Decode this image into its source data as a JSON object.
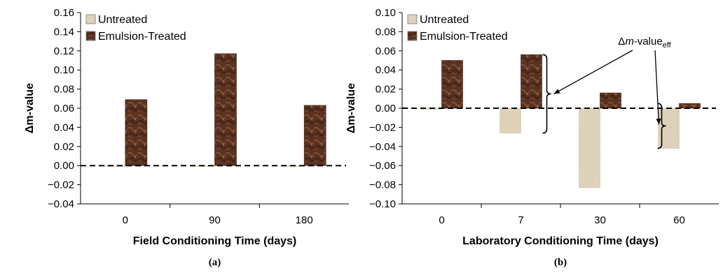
{
  "colors": {
    "untreated": "#e6dac6",
    "emulsion_treated": "#5b3320",
    "zero_line": "#000000"
  },
  "chart_data": [
    {
      "type": "bar",
      "panel_label": "(a)",
      "categories": [
        "0",
        "90",
        "180"
      ],
      "xlabel": "Field Conditioning Time (days)",
      "ylabel": "Δm-value",
      "ylim": [
        -0.04,
        0.16
      ],
      "yticks": [
        "0.16",
        "0.14",
        "0.12",
        "0.10",
        "0.08",
        "0.06",
        "0.04",
        "0.02",
        "0.00",
        "−0.02",
        "−0.04"
      ],
      "grid": false,
      "legend_position": "top-left",
      "reference_line": 0,
      "series": [
        {
          "name": "Untreated",
          "values": [
            0.0,
            0.0,
            0.0
          ]
        },
        {
          "name": "Emulsion-Treated",
          "values": [
            0.069,
            0.117,
            0.063
          ]
        }
      ]
    },
    {
      "type": "bar",
      "panel_label": "(b)",
      "categories": [
        "0",
        "7",
        "30",
        "60"
      ],
      "xlabel": "Laboratory Conditioning Time (days)",
      "ylabel": "Δm-value",
      "ylim": [
        -0.1,
        0.1
      ],
      "yticks": [
        "0.10",
        "0.08",
        "0.06",
        "0.04",
        "0.02",
        "0.00",
        "−0.02",
        "−0.04",
        "−0.06",
        "−0.08",
        "−0.10"
      ],
      "grid": false,
      "legend_position": "top-left",
      "reference_line": 0,
      "annotation": {
        "text_prefix": "Δ",
        "text_italic": "m",
        "text_suffix": "-value",
        "text_sub": "eff"
      },
      "series": [
        {
          "name": "Untreated",
          "values": [
            -0.001,
            -0.026,
            -0.083,
            -0.042
          ]
        },
        {
          "name": "Emulsion-Treated",
          "values": [
            0.05,
            0.056,
            0.016,
            0.005
          ]
        }
      ]
    }
  ]
}
